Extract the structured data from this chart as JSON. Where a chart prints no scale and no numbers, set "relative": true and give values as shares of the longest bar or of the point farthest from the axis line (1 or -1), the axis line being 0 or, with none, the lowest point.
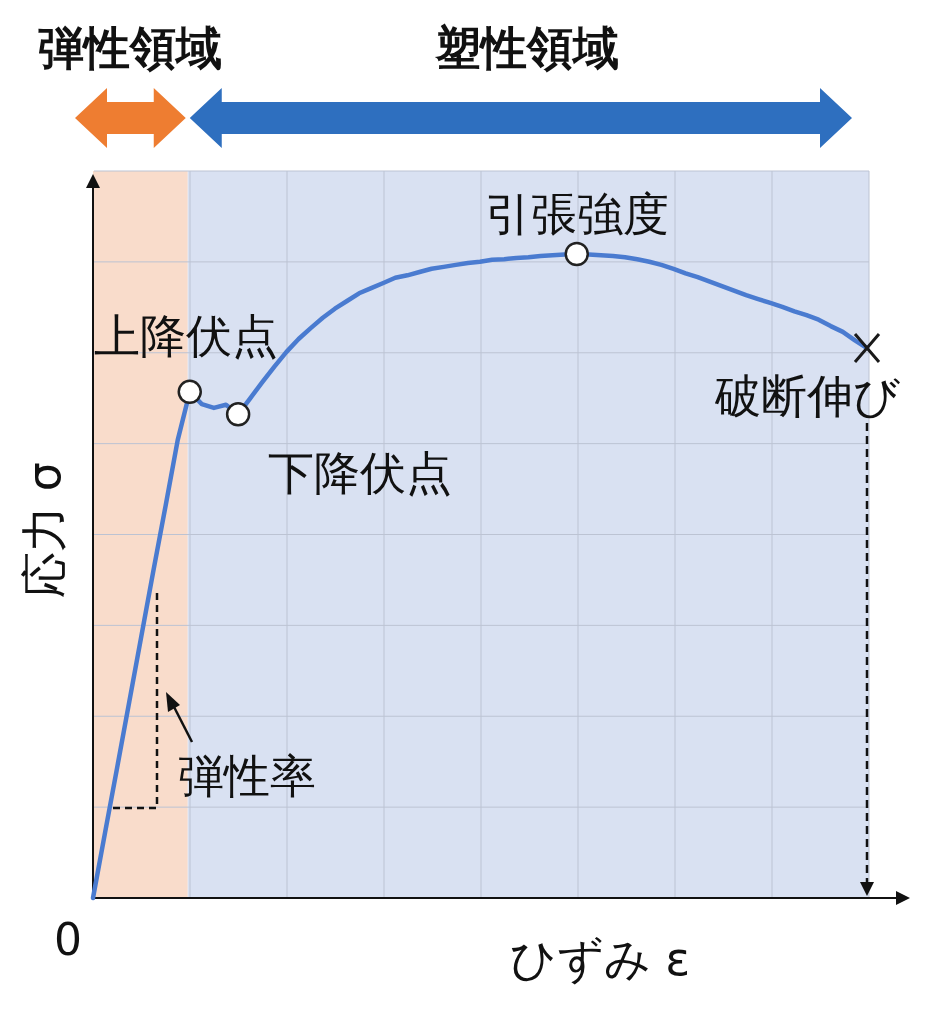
{
  "chart_data": {
    "type": "line",
    "relative": true,
    "xlabel": "ひずみ ε",
    "ylabel": "応力 σ",
    "grid": true,
    "color": "#4a7bd0",
    "categories": [
      null,
      null,
      null,
      null,
      null,
      null,
      null,
      null,
      null,
      null,
      null,
      null,
      null,
      null,
      null,
      null,
      null,
      null,
      null,
      null,
      null,
      null,
      null,
      null,
      null,
      null,
      null,
      null,
      null,
      null,
      null,
      null,
      null,
      null,
      null,
      null,
      null,
      null,
      null,
      null,
      null,
      null,
      null,
      null,
      null,
      null,
      null,
      null,
      null,
      null,
      null,
      null,
      null,
      null,
      null,
      null,
      null,
      null,
      null,
      null,
      null,
      null,
      null,
      null,
      null
    ],
    "values": [
      0,
      0.102,
      0.203,
      0.305,
      0.407,
      0.509,
      0.609,
      0.711,
      0.786,
      0.767,
      0.761,
      0.766,
      0.751,
      0.776,
      0.801,
      0.825,
      0.848,
      0.868,
      0.885,
      0.901,
      0.915,
      0.927,
      0.939,
      0.947,
      0.955,
      0.963,
      0.967,
      0.972,
      0.977,
      0.98,
      0.983,
      0.986,
      0.988,
      0.991,
      0.992,
      0.994,
      0.995,
      0.997,
      0.998,
      0.999,
      1,
      0.999,
      0.998,
      0.997,
      0.995,
      0.992,
      0.988,
      0.983,
      0.977,
      0.97,
      0.964,
      0.957,
      0.95,
      0.943,
      0.936,
      0.93,
      0.924,
      0.918,
      0.911,
      0.905,
      0.898,
      0.888,
      0.879,
      0.866,
      0.854
    ],
    "annotations": [
      "弾性領域",
      "塑性領域",
      "0",
      "弾性率",
      {
        "text": "上降伏点",
        "y": 0.786
      },
      "下降伏点",
      {
        "text": "引張強度",
        "y": 1
      },
      "破断伸び"
    ]
  }
}
